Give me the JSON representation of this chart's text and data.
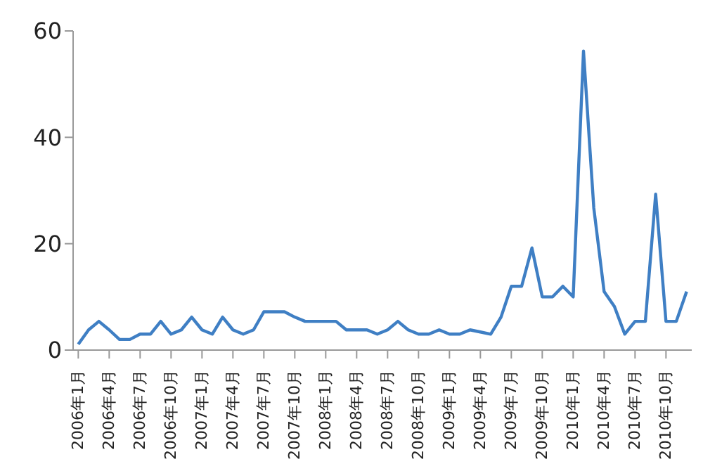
{
  "chart_data": {
    "type": "line",
    "categories": [
      "2006年1月",
      null,
      null,
      "2006年4月",
      null,
      null,
      "2006年7月",
      null,
      null,
      "2006年10月",
      null,
      null,
      "2007年1月",
      null,
      null,
      "2007年4月",
      null,
      null,
      "2007年7月",
      null,
      null,
      "2007年10月",
      null,
      null,
      "2008年1月",
      null,
      null,
      "2008年4月",
      null,
      null,
      "2008年7月",
      null,
      null,
      "2008年10月",
      null,
      null,
      "2009年1月",
      null,
      null,
      "2009年4月",
      null,
      null,
      "2009年7月",
      null,
      null,
      "2009年10月",
      null,
      null,
      "2010年1月",
      null,
      null,
      "2010年4月",
      null,
      null,
      "2010年7月",
      null,
      null,
      "2010年10月",
      null,
      null
    ],
    "series": [
      {
        "color": "#3f7fc4",
        "values": [
          1.1,
          3.8,
          5.4,
          3.8,
          2,
          2,
          3,
          3,
          5.4,
          3,
          3.8,
          6.2,
          3.8,
          3,
          6.2,
          3.8,
          3,
          3.8,
          7.2,
          7.2,
          7.2,
          6.2,
          5.4,
          5.4,
          5.4,
          5.4,
          3.8,
          3.8,
          3.8,
          3,
          3.8,
          5.4,
          3.8,
          3,
          3,
          3.8,
          3,
          3,
          3.8,
          3.4,
          3,
          6.2,
          12,
          12,
          19.2,
          10,
          10,
          12,
          10,
          56.2,
          26.7,
          11,
          8.2,
          3,
          5.4,
          5.4,
          29.3,
          5.4,
          5.4,
          11
        ]
      }
    ],
    "ylim": [
      0,
      60
    ],
    "yticks": [
      0,
      20,
      40,
      60
    ],
    "grid": false,
    "legend": false,
    "marker": "none",
    "line_style": "solid"
  }
}
